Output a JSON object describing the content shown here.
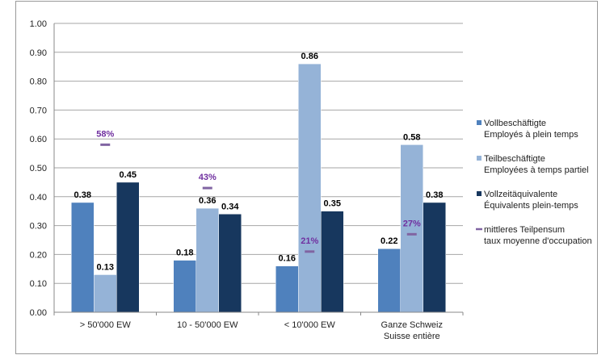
{
  "chart_data": {
    "type": "bar",
    "categories": [
      [
        "> 50'000 EW"
      ],
      [
        "10 - 50'000 EW"
      ],
      [
        "< 10'000 EW"
      ],
      [
        "Ganze Schweiz",
        "Suisse entière"
      ]
    ],
    "series": [
      {
        "name": [
          "Vollbeschäftigte",
          "Employés à plein temps"
        ],
        "color": "#4f81bd",
        "values": [
          0.38,
          0.18,
          0.16,
          0.22
        ],
        "labels": [
          "0.38",
          "0.18",
          "0.16",
          "0.22"
        ]
      },
      {
        "name": [
          "Teilbeschäftigte",
          "Employées à temps partiel"
        ],
        "color": "#95b3d7",
        "values": [
          0.13,
          0.36,
          0.86,
          0.58
        ],
        "labels": [
          "0.13",
          "0.36",
          "0.86",
          "0.58"
        ]
      },
      {
        "name": [
          "Vollzeitäquivalente",
          "Équivalents plein-temps"
        ],
        "color": "#17375e",
        "values": [
          0.45,
          0.34,
          0.35,
          0.38
        ],
        "labels": [
          "0.45",
          "0.34",
          "0.35",
          "0.38"
        ]
      }
    ],
    "marker_series": {
      "name": [
        "mittleres Teilpensum",
        "taux moyenne d'occupation"
      ],
      "color": "#8064a2",
      "label_color": "#7030a0",
      "values": [
        0.58,
        0.43,
        0.21,
        0.27
      ],
      "labels": [
        "58%",
        "43%",
        "21%",
        "27%"
      ]
    },
    "yticks": [
      "0.00",
      "0.10",
      "0.20",
      "0.30",
      "0.40",
      "0.50",
      "0.60",
      "0.70",
      "0.80",
      "0.90",
      "1.00"
    ],
    "ylim": [
      0,
      1
    ],
    "grid": true,
    "legend": "right"
  }
}
